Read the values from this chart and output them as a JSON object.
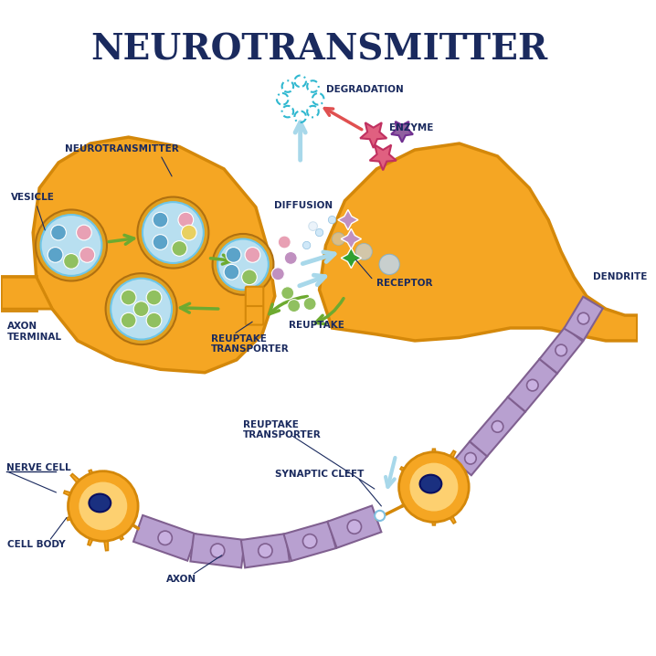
{
  "title": "NEUROTRANSMITTER",
  "title_color": "#1a2a5e",
  "title_fontsize": 28,
  "bg_color": "#ffffff",
  "labels": {
    "neurotransmitter": "NEUROTRANSMITTER",
    "vesicle": "VESICLE",
    "axon_terminal": "AXON\nTERMINAL",
    "diffusion": "DIFFUSION",
    "degradation": "DEGRADATION",
    "enzyme": "ENZYME",
    "receptor": "RECEPTOR",
    "reuptake": "REUPTAKE",
    "reuptake_transporter": "REUPTAKE\nTRANSPORTER",
    "nerve_cell": "NERVE CELL",
    "cell_body": "CELL BODY",
    "axon": "AXON",
    "synaptic_cleft": "SYNAPTIC CLEFT",
    "dendrite": "DENDRITE"
  },
  "colors": {
    "axon_terminal_fill": "#F5A623",
    "axon_terminal_outline": "#D4880A",
    "vesicle_outer": "#6EC6E8",
    "vesicle_inner": "#B8DFF0",
    "ball_blue": "#5BA3C9",
    "ball_pink": "#E8A0B4",
    "ball_green": "#90C060",
    "ball_purple": "#C090C0",
    "ball_yellow": "#E8D060",
    "arrow_green": "#6DAA30",
    "arrow_blue": "#A8D8EA",
    "arrow_red": "#E05050",
    "degradation_color": "#30B0C0",
    "enzyme_color": "#E06080",
    "receptor_color": "#90C090",
    "nerve_orange": "#F5A623",
    "nerve_outline": "#D4880A",
    "axon_fill": "#B8A0D0",
    "axon_outline": "#806090",
    "cell_body_dark": "#D4880A",
    "nucleus_color": "#2040A0",
    "diffusion_dots": "#C0D8F0",
    "synaptic_gap": "#E8F4FF",
    "label_color": "#1a2a5e",
    "label_fontsize": 7.5
  }
}
